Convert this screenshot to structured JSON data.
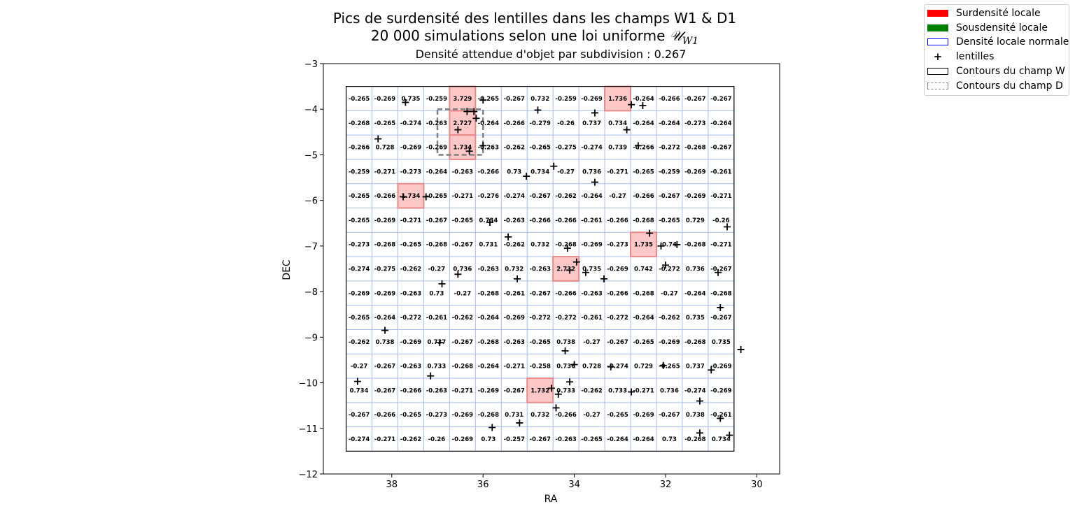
{
  "chart_data": {
    "type": "heatmap",
    "title": "Pics de surdensité des lentilles dans les champs W1 & D1",
    "subtitle_prefix": "20 000 simulations selon une loi uniforme ",
    "subtitle_symbol": "𝒰",
    "subtitle_sub": "W1",
    "axes_title": "Densité attendue d'objet par subdivision : 0.267",
    "xlabel": "RA",
    "ylabel": "DEC",
    "xlim": [
      39.5,
      29.5
    ],
    "ylim": [
      -12,
      -3
    ],
    "x_ticks": [
      "38",
      "36",
      "34",
      "32",
      "30"
    ],
    "y_ticks": [
      "−3",
      "−4",
      "−5",
      "−6",
      "−7",
      "−8",
      "−9",
      "−10",
      "−11",
      "−12"
    ],
    "colors": {
      "overdense": "#ff0000",
      "underdense": "#008000",
      "normal_edge": "#0000ff",
      "grid_line": "#a8bdf0",
      "overdense_fill": "#ffc8c8",
      "overdense_edge": "#e88a8a",
      "field_d": "#808080"
    },
    "legend": [
      {
        "label": "Surdensité locale",
        "icon": "red-filled-patch"
      },
      {
        "label": "Sousdensité locale",
        "icon": "green-filled-patch"
      },
      {
        "label": "Densité locale normale",
        "icon": "blue-outline-patch"
      },
      {
        "label": "lentilles",
        "icon": "plus-marker"
      },
      {
        "label": "Contours du champ W",
        "icon": "black-outline-patch"
      },
      {
        "label": "Contours du champ D",
        "icon": "gray-dashed-patch"
      }
    ],
    "field_w": {
      "ra": [
        39,
        30.5
      ],
      "dec": [
        -11.5,
        -3.5
      ]
    },
    "field_d": {
      "ra": [
        37,
        36
      ],
      "dec": [
        -5,
        -4
      ]
    },
    "grid": {
      "ra_start": 39,
      "dec_start": -3.5,
      "cols": 15,
      "rows": 15
    },
    "overdense_cells": [
      [
        0,
        4
      ],
      [
        1,
        4
      ],
      [
        2,
        4
      ],
      [
        4,
        2
      ],
      [
        0,
        10
      ],
      [
        6,
        11
      ],
      [
        7,
        8
      ],
      [
        12,
        7
      ]
    ],
    "cells": [
      [
        "-0.265",
        "-0.269",
        "0.735",
        "-0.259",
        "3.729",
        "-0.265",
        "-0.267",
        "0.732",
        "-0.259",
        "-0.269",
        "1.736",
        "-0.264",
        "-0.266",
        "-0.267",
        "-0.267"
      ],
      [
        "-0.268",
        "-0.265",
        "-0.274",
        "-0.263",
        "2.727",
        "-0.264",
        "-0.266",
        "-0.279",
        "-0.26",
        "0.737",
        "0.734",
        "-0.264",
        "-0.264",
        "-0.273",
        "-0.264"
      ],
      [
        "-0.266",
        "0.728",
        "-0.269",
        "-0.269",
        "1.734",
        "-0.263",
        "-0.262",
        "-0.265",
        "-0.275",
        "-0.274",
        "0.739",
        "-0.266",
        "-0.272",
        "-0.268",
        "-0.267"
      ],
      [
        "-0.259",
        "-0.271",
        "-0.273",
        "-0.264",
        "-0.263",
        "-0.266",
        "0.73",
        "0.734",
        "-0.27",
        "0.736",
        "-0.271",
        "-0.265",
        "-0.259",
        "-0.269",
        "-0.261"
      ],
      [
        "-0.265",
        "-0.266",
        "1.734",
        "-0.265",
        "-0.271",
        "-0.276",
        "-0.274",
        "-0.267",
        "-0.262",
        "-0.264",
        "-0.27",
        "-0.266",
        "-0.267",
        "-0.269",
        "-0.271"
      ],
      [
        "-0.265",
        "-0.269",
        "-0.271",
        "-0.267",
        "-0.265",
        "0.734",
        "-0.263",
        "-0.266",
        "-0.266",
        "-0.261",
        "-0.266",
        "-0.268",
        "-0.265",
        "0.729",
        "-0.26"
      ],
      [
        "-0.273",
        "-0.268",
        "-0.265",
        "-0.268",
        "-0.267",
        "0.731",
        "-0.262",
        "0.732",
        "-0.268",
        "-0.269",
        "-0.273",
        "1.735",
        "0.74",
        "-0.268",
        "-0.271"
      ],
      [
        "-0.274",
        "-0.275",
        "-0.262",
        "-0.27",
        "0.736",
        "-0.263",
        "0.732",
        "-0.263",
        "2.732",
        "0.735",
        "-0.269",
        "0.742",
        "-0.272",
        "0.736",
        "-0.267"
      ],
      [
        "-0.269",
        "-0.269",
        "-0.263",
        "0.73",
        "-0.27",
        "-0.268",
        "-0.261",
        "-0.267",
        "-0.266",
        "-0.263",
        "-0.266",
        "-0.268",
        "-0.27",
        "-0.264",
        "-0.268"
      ],
      [
        "-0.265",
        "-0.264",
        "-0.272",
        "-0.261",
        "-0.262",
        "-0.264",
        "-0.269",
        "-0.272",
        "-0.272",
        "-0.261",
        "-0.272",
        "-0.264",
        "-0.262",
        "0.735",
        "-0.267"
      ],
      [
        "-0.262",
        "0.738",
        "-0.269",
        "0.737",
        "-0.267",
        "-0.268",
        "-0.263",
        "-0.265",
        "0.738",
        "-0.27",
        "-0.267",
        "-0.265",
        "-0.269",
        "-0.268",
        "0.735"
      ],
      [
        "-0.27",
        "-0.267",
        "-0.263",
        "0.733",
        "-0.268",
        "-0.264",
        "-0.271",
        "-0.258",
        "0.736",
        "0.728",
        "-0.274",
        "0.729",
        "-0.265",
        "0.737",
        "-0.269"
      ],
      [
        "0.734",
        "-0.267",
        "-0.266",
        "-0.263",
        "-0.271",
        "-0.269",
        "-0.267",
        "1.732",
        "0.733",
        "-0.262",
        "0.733",
        "-0.271",
        "0.736",
        "-0.274",
        "-0.269"
      ],
      [
        "-0.267",
        "-0.266",
        "-0.265",
        "-0.273",
        "-0.269",
        "-0.268",
        "0.731",
        "0.732",
        "-0.266",
        "-0.27",
        "-0.265",
        "-0.269",
        "-0.267",
        "0.738",
        "-0.261"
      ],
      [
        "-0.274",
        "-0.271",
        "-0.262",
        "-0.26",
        "-0.269",
        "0.73",
        "-0.257",
        "-0.267",
        "-0.263",
        "-0.265",
        "-0.264",
        "-0.264",
        "0.73",
        "-0.268",
        "0.734"
      ]
    ],
    "lenses": [
      [
        37.7,
        -3.85
      ],
      [
        36.35,
        -4.05
      ],
      [
        36.2,
        -4.05
      ],
      [
        36.0,
        -3.8
      ],
      [
        36.15,
        -4.2
      ],
      [
        36.55,
        -4.45
      ],
      [
        36.0,
        -4.8
      ],
      [
        36.3,
        -4.92
      ],
      [
        38.3,
        -4.65
      ],
      [
        34.8,
        -4.02
      ],
      [
        33.55,
        -4.08
      ],
      [
        32.75,
        -3.9
      ],
      [
        32.5,
        -3.92
      ],
      [
        32.85,
        -4.45
      ],
      [
        32.6,
        -4.8
      ],
      [
        34.45,
        -5.25
      ],
      [
        35.05,
        -5.47
      ],
      [
        33.55,
        -5.6
      ],
      [
        37.75,
        -5.92
      ],
      [
        37.25,
        -5.92
      ],
      [
        35.85,
        -6.48
      ],
      [
        35.45,
        -6.8
      ],
      [
        32.35,
        -6.72
      ],
      [
        32.1,
        -7.0
      ],
      [
        31.75,
        -6.97
      ],
      [
        30.65,
        -6.58
      ],
      [
        34.15,
        -7.05
      ],
      [
        33.95,
        -7.35
      ],
      [
        34.1,
        -7.53
      ],
      [
        33.75,
        -7.58
      ],
      [
        33.35,
        -7.72
      ],
      [
        32.0,
        -7.42
      ],
      [
        30.85,
        -7.58
      ],
      [
        36.55,
        -7.62
      ],
      [
        35.25,
        -7.72
      ],
      [
        36.9,
        -7.83
      ],
      [
        30.8,
        -8.35
      ],
      [
        38.15,
        -8.85
      ],
      [
        36.95,
        -9.12
      ],
      [
        34.2,
        -9.3
      ],
      [
        30.35,
        -9.27
      ],
      [
        34.0,
        -9.6
      ],
      [
        33.2,
        -9.65
      ],
      [
        32.05,
        -9.62
      ],
      [
        31.0,
        -9.72
      ],
      [
        37.15,
        -9.85
      ],
      [
        38.75,
        -9.97
      ],
      [
        34.1,
        -9.98
      ],
      [
        34.5,
        -10.12
      ],
      [
        34.35,
        -10.25
      ],
      [
        32.75,
        -10.2
      ],
      [
        31.25,
        -10.4
      ],
      [
        34.4,
        -10.55
      ],
      [
        30.8,
        -10.78
      ],
      [
        35.2,
        -10.88
      ],
      [
        35.8,
        -10.98
      ],
      [
        31.25,
        -11.1
      ],
      [
        30.6,
        -11.15
      ]
    ]
  }
}
